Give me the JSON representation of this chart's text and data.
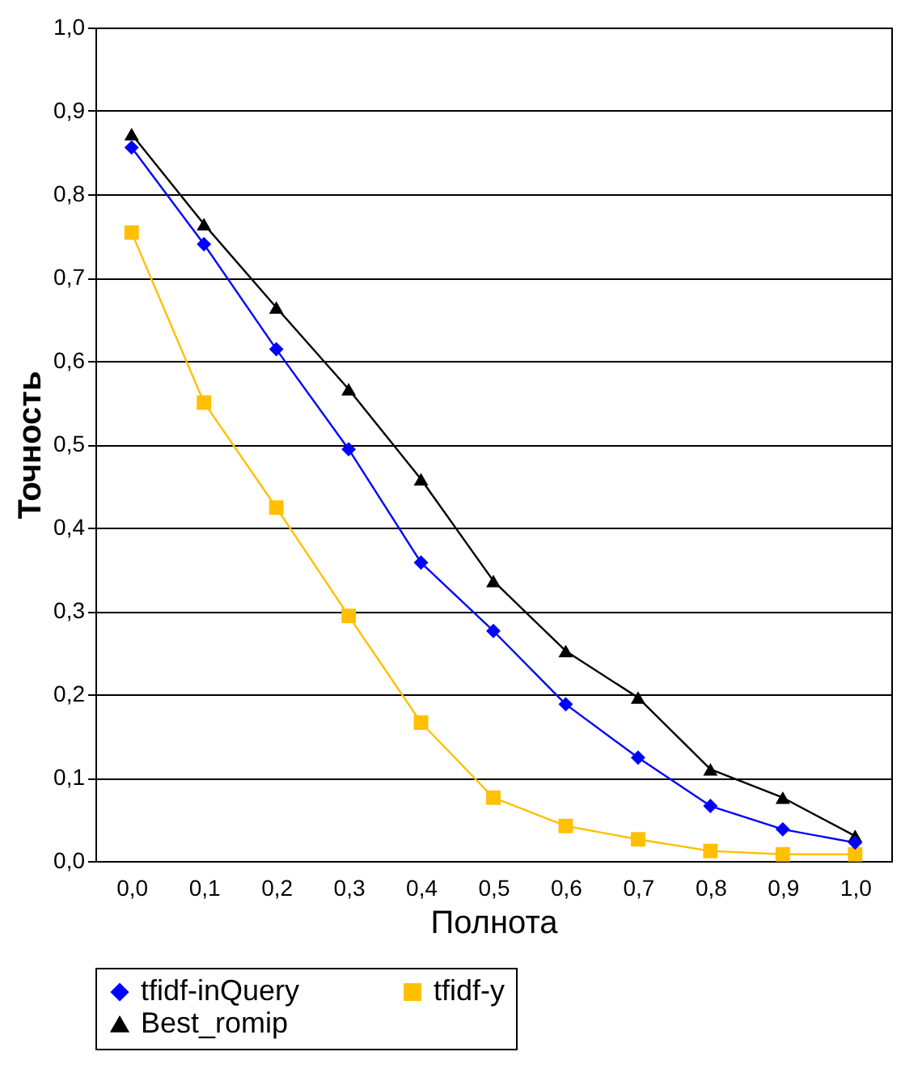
{
  "chart_data": {
    "type": "line",
    "xlabel": "Полнота",
    "ylabel": "Точность",
    "categories": [
      "0,0",
      "0,1",
      "0,2",
      "0,3",
      "0,4",
      "0,5",
      "0,6",
      "0,7",
      "0,8",
      "0,9",
      "1,0"
    ],
    "ylim": [
      0,
      1
    ],
    "yticks": [
      {
        "value": 0,
        "label": "0,0"
      },
      {
        "value": 0.1,
        "label": "0,1"
      },
      {
        "value": 0.2,
        "label": "0,2"
      },
      {
        "value": 0.3,
        "label": "0,3"
      },
      {
        "value": 0.4,
        "label": "0,4"
      },
      {
        "value": 0.5,
        "label": "0,5"
      },
      {
        "value": 0.6,
        "label": "0,6"
      },
      {
        "value": 0.7,
        "label": "0,7"
      },
      {
        "value": 0.8,
        "label": "0,8"
      },
      {
        "value": 0.9,
        "label": "0,9"
      },
      {
        "value": 1,
        "label": "1,0"
      }
    ],
    "grid": "y",
    "legend": "bottom",
    "series": [
      {
        "name": "tfidf-inQuery",
        "color": "#0000ff",
        "marker": "diamond",
        "values": [
          0.856,
          0.74,
          0.614,
          0.494,
          0.358,
          0.276,
          0.188,
          0.124,
          0.066,
          0.038,
          0.022
        ]
      },
      {
        "name": "tfidf-y",
        "color": "#ffc000",
        "marker": "square",
        "values": [
          0.754,
          0.55,
          0.424,
          0.294,
          0.166,
          0.076,
          0.042,
          0.026,
          0.012,
          0.008,
          0.008
        ]
      },
      {
        "name": "Best_romip",
        "color": "#000000",
        "marker": "triangle",
        "values": [
          0.872,
          0.764,
          0.664,
          0.566,
          0.458,
          0.336,
          0.252,
          0.196,
          0.11,
          0.076,
          0.03
        ]
      }
    ]
  }
}
